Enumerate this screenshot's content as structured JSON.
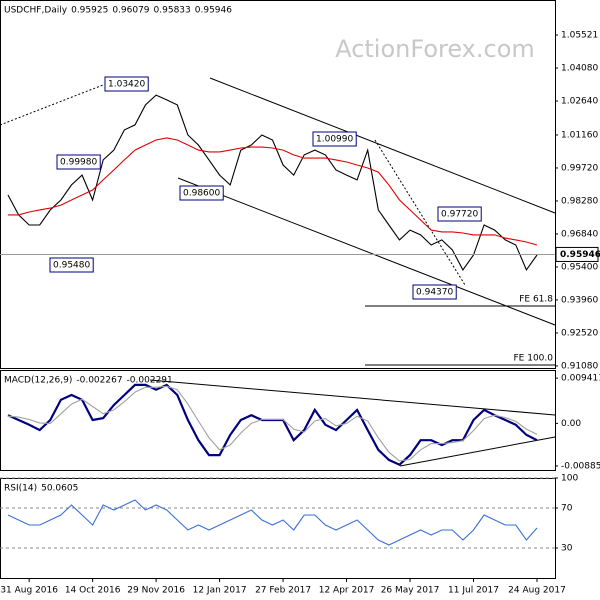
{
  "watermark": "ActionForex.com",
  "chart_data": [
    {
      "type": "line",
      "title": "USDCHF,Daily",
      "readings": [
        0.95925,
        0.96079,
        0.95833,
        0.95946
      ],
      "categories": [
        null,
        null,
        "31 Aug 2016",
        null,
        null,
        null,
        null,
        null,
        "14 Oct 2016",
        null,
        null,
        null,
        null,
        null,
        "29 Nov 2016",
        null,
        null,
        null,
        null,
        null,
        "12 Jan 2017",
        null,
        null,
        null,
        null,
        null,
        "27 Feb 2017",
        null,
        null,
        null,
        null,
        null,
        "12 Apr 2017",
        null,
        null,
        null,
        null,
        null,
        "26 May 2017",
        null,
        null,
        null,
        null,
        null,
        "11 Jul 2017",
        null,
        null,
        null,
        null,
        null,
        "24 Aug 2017"
      ],
      "series": [
        {
          "color": "#000000",
          "values": [
            0.9854,
            0.9767,
            0.9723,
            0.9723,
            0.9789,
            0.9832,
            0.9898,
            0.9941,
            0.9832,
            1.0007,
            1.005,
            1.0138,
            1.016,
            1.0247,
            1.029,
            1.0269,
            1.0247,
            1.0116,
            1.0072,
            1.0007,
            0.9941,
            0.9898,
            1.005,
            1.0072,
            1.0116,
            1.0094,
            0.9985,
            0.9941,
            1.0029,
            1.005,
            1.0029,
            0.9963,
            0.9941,
            0.992,
            1.005,
            0.9789,
            0.9723,
            0.9658,
            0.9701,
            0.968,
            0.9636,
            0.9658,
            0.9614,
            0.9527,
            0.9592,
            0.9723,
            0.9701,
            0.9658,
            0.9636,
            0.9527,
            0.9592
          ]
        },
        {
          "color": "#e00000",
          "values": [
            0.9767,
            0.9767,
            0.978,
            0.9789,
            0.9797,
            0.981,
            0.9832,
            0.9854,
            0.9876,
            0.992,
            0.9963,
            1.0007,
            1.005,
            1.0072,
            1.0094,
            1.0103,
            1.0094,
            1.0072,
            1.005,
            1.0042,
            1.0042,
            1.005,
            1.0059,
            1.0063,
            1.0063,
            1.0059,
            1.005,
            1.0029,
            1.0015,
            1.0015,
            1.0015,
            1.0007,
            0.9998,
            0.9985,
            0.9972,
            0.9954,
            0.9898,
            0.9832,
            0.9789,
            0.9745,
            0.9701,
            0.9693,
            0.9693,
            0.9688,
            0.968,
            0.968,
            0.968,
            0.9666,
            0.9658,
            0.9649,
            0.9636
          ]
        }
      ],
      "ylim": [
        0.9099,
        1.0705
      ],
      "yticks": [
        {
          "value": 1.05521,
          "label": "1.05521"
        },
        {
          "value": 1.0408,
          "label": "1.04080"
        },
        {
          "value": 1.0264,
          "label": "1.02640"
        },
        {
          "value": 1.0116,
          "label": "1.01160"
        },
        {
          "value": 0.9972,
          "label": "0.99720"
        },
        {
          "value": 0.9828,
          "label": "0.98280"
        },
        {
          "value": 0.9684,
          "label": "0.96840"
        },
        {
          "value": 0.954,
          "label": "0.95400"
        },
        {
          "value": 0.9396,
          "label": "0.93960"
        },
        {
          "value": 0.9252,
          "label": "0.92520"
        },
        {
          "value": 0.9108,
          "label": "0.91080"
        }
      ],
      "annotations": [
        "1.03420",
        "0.99980",
        "0.95480",
        "0.98600",
        "1.00990",
        "0.97720",
        "0.94370",
        "FE 61.8",
        "FE 100.0"
      ],
      "grid": false
    },
    {
      "type": "line",
      "title": "MACD(12,26,9)",
      "readings": [
        -0.002267,
        -0.002291
      ],
      "series": [
        {
          "color": "#000080",
          "values": [
            0.0017,
            0.0007,
            -0.0003,
            -0.0014,
            0.0007,
            0.0049,
            0.0059,
            0.0049,
            0.0007,
            0.0011,
            0.0038,
            0.0059,
            0.008,
            0.008,
            0.007,
            0.008,
            0.0059,
            0.0007,
            -0.0035,
            -0.0066,
            -0.0066,
            -0.0024,
            0.0007,
            0.0017,
            0.0007,
            0.0007,
            0.0007,
            -0.0035,
            -0.0014,
            0.0028,
            -0.0003,
            -0.0014,
            0.0007,
            0.0028,
            -0.0014,
            -0.0055,
            -0.0076,
            -0.0086,
            -0.0066,
            -0.0035,
            -0.0035,
            -0.0045,
            -0.0035,
            -0.0035,
            0.0007,
            0.0028,
            0.0017,
            0.0007,
            -0.0003,
            -0.0024,
            -0.0035
          ]
        },
        {
          "color": "#a0a0a0",
          "values": [
            0.0015,
            0.0013,
            0.0008,
            0.0001,
            0.0,
            0.002,
            0.004,
            0.005,
            0.0035,
            0.002,
            0.0028,
            0.0045,
            0.0065,
            0.0075,
            0.0075,
            0.0077,
            0.007,
            0.004,
            0.0005,
            -0.003,
            -0.0055,
            -0.0045,
            -0.002,
            0.0,
            0.0008,
            0.0008,
            0.0008,
            -0.0012,
            -0.0018,
            0.0005,
            0.001,
            -0.0005,
            0.0,
            0.0015,
            0.0005,
            -0.003,
            -0.006,
            -0.0078,
            -0.0075,
            -0.0055,
            -0.0042,
            -0.0042,
            -0.004,
            -0.0036,
            -0.0015,
            0.001,
            0.0017,
            0.0012,
            0.0004,
            -0.0012,
            -0.0023
          ]
        }
      ],
      "ylim": [
        -0.0097,
        0.0111
      ],
      "yticks": [
        0.009411,
        {
          "value": 0,
          "label": "0.00"
        },
        -0.008852
      ],
      "grid": false
    },
    {
      "type": "line",
      "title": "RSI(14)",
      "readings": [
        50.0605
      ],
      "series": [
        {
          "color": "#3a6fd8",
          "values": [
            63,
            58,
            53,
            53,
            58,
            63,
            73,
            63,
            53,
            73,
            68,
            73,
            78,
            68,
            73,
            68,
            58,
            48,
            53,
            48,
            53,
            58,
            63,
            68,
            58,
            53,
            58,
            48,
            63,
            63,
            53,
            48,
            53,
            58,
            48,
            38,
            33,
            38,
            43,
            48,
            43,
            48,
            48,
            38,
            48,
            63,
            58,
            53,
            53,
            38,
            50
          ]
        }
      ],
      "ylim": [
        0,
        100
      ],
      "yticks": [
        100,
        70,
        30
      ],
      "grid": true
    }
  ]
}
